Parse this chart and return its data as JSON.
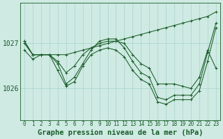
{
  "background_color": "#ceeae2",
  "grid_color": "#a8d4cc",
  "line_color": "#1a5c2a",
  "title": "Graphe pression niveau de la mer (hPa)",
  "title_fontsize": 7.5,
  "ylabel_labels": [
    1026,
    1027
  ],
  "ytick_fontsize": 7,
  "xtick_fontsize": 5.5,
  "xlim": [
    -0.5,
    23.5
  ],
  "ylim": [
    1025.3,
    1027.9
  ],
  "series": [
    [
      1027.0,
      1026.75,
      1026.75,
      1026.75,
      1026.55,
      1026.1,
      1026.25,
      1026.55,
      1026.85,
      1027.05,
      1027.1,
      1027.1,
      1026.9,
      1026.6,
      1026.35,
      1026.25,
      1025.8,
      1025.75,
      1025.85,
      1025.85,
      1025.85,
      1026.1,
      1026.8,
      1027.45
    ],
    [
      1026.85,
      1026.65,
      1026.75,
      1026.75,
      1026.4,
      1026.05,
      1026.15,
      1026.5,
      1026.75,
      1026.85,
      1026.9,
      1026.85,
      1026.7,
      1026.4,
      1026.2,
      1026.1,
      1025.7,
      1025.65,
      1025.75,
      1025.75,
      1025.75,
      1025.95,
      1026.6,
      1027.35
    ],
    [
      1027.05,
      1026.75,
      1026.75,
      1026.75,
      1026.75,
      1026.75,
      1026.8,
      1026.85,
      1026.9,
      1026.95,
      1027.0,
      1027.05,
      1027.1,
      1027.15,
      1027.2,
      1027.25,
      1027.3,
      1027.35,
      1027.4,
      1027.45,
      1027.5,
      1027.55,
      1027.6,
      1027.7
    ],
    [
      1027.05,
      1026.75,
      1026.75,
      1026.75,
      1026.6,
      1026.35,
      1026.5,
      1026.75,
      1026.9,
      1027.0,
      1027.05,
      1027.05,
      1027.0,
      1026.75,
      1026.55,
      1026.45,
      1026.1,
      1026.1,
      1026.1,
      1026.05,
      1026.0,
      1026.25,
      1026.85,
      1026.45
    ]
  ],
  "xtick_labels": [
    "0",
    "1",
    "2",
    "3",
    "4",
    "5",
    "6",
    "7",
    "8",
    "9",
    "10",
    "11",
    "12",
    "13",
    "14",
    "15",
    "16",
    "17",
    "18",
    "19",
    "20",
    "21",
    "22",
    "23"
  ]
}
